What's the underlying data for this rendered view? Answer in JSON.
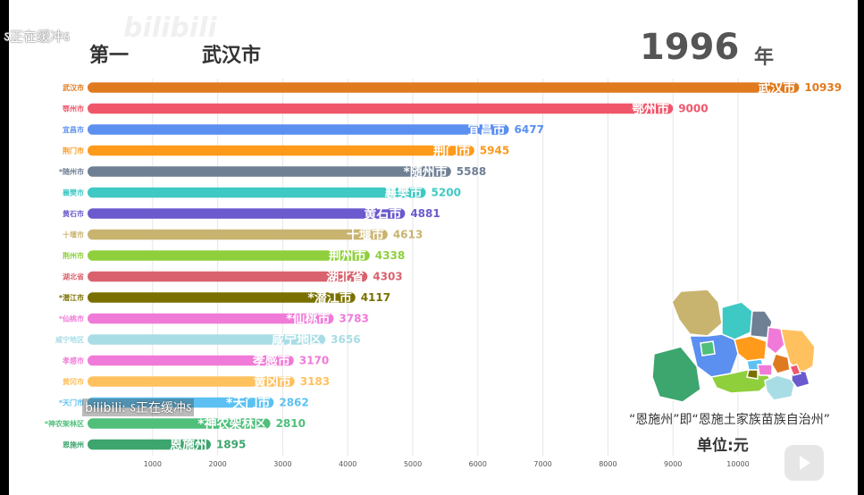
{
  "overlay_top": "ऽ正在缓冲ऽ",
  "watermark": "bilibili",
  "header": {
    "rank": "第一",
    "leader": "武汉市",
    "year": "1996",
    "year_unit": "年"
  },
  "note": "“恩施州”即“恩施土家族苗族自治州”",
  "unit": "单位:元",
  "overlay_bottom": "bilibili: ऽ正在缓冲ऽ",
  "icons": {
    "play": "play-icon",
    "map": "hubei-map"
  },
  "chart_data": {
    "type": "bar",
    "orientation": "horizontal",
    "xlim": [
      0,
      11000
    ],
    "xticks": [
      1000,
      2000,
      3000,
      4000,
      5000,
      6000,
      7000,
      8000,
      9000,
      10000
    ],
    "grid": true,
    "categories": [
      "武汉市",
      "鄂州市",
      "宜昌市",
      "荆门市",
      "*随州市",
      "襄樊市",
      "黄石市",
      "十堰市",
      "荆州市",
      "湖北省",
      "*潜江市",
      "*仙桃市",
      "咸宁地区",
      "孝感市",
      "黄冈市",
      "*天门市",
      "*神农架林区",
      "恩施州"
    ],
    "values": [
      10939,
      9000,
      6477,
      5945,
      5588,
      5200,
      4881,
      4613,
      4338,
      4303,
      4117,
      3783,
      3656,
      3170,
      3183,
      2862,
      2810,
      1895
    ],
    "colors": [
      "#e07a1f",
      "#f0566a",
      "#5b8ff0",
      "#ff9a1a",
      "#6f7f94",
      "#3ec9c4",
      "#6a5acd",
      "#c9b46f",
      "#8fcf3c",
      "#d9626e",
      "#7a7000",
      "#f07ad8",
      "#a8dde6",
      "#f07ad8",
      "#ffc15e",
      "#5cc1f2",
      "#4fbf7a",
      "#3da56e"
    ]
  }
}
